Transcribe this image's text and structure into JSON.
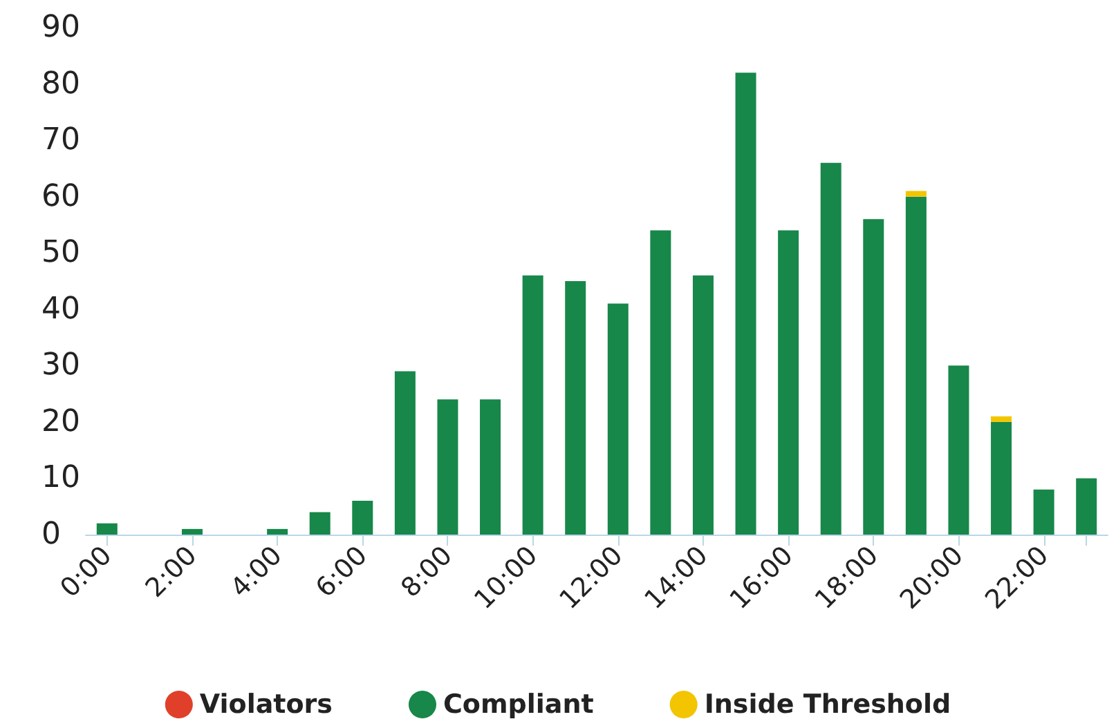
{
  "chart_data": {
    "type": "bar",
    "stacked": true,
    "categories": [
      "0:00",
      null,
      "2:00",
      null,
      "4:00",
      null,
      "6:00",
      null,
      "8:00",
      null,
      "10:00",
      null,
      "12:00",
      null,
      "14:00",
      null,
      "16:00",
      null,
      "18:00",
      null,
      "20:00",
      null,
      "22:00",
      null
    ],
    "series": [
      {
        "name": "Violators",
        "color": "#e0402a",
        "values": [
          0,
          0,
          0,
          0,
          0,
          0,
          0,
          0,
          0,
          0,
          0,
          0,
          0,
          0,
          0,
          0,
          0,
          0,
          0,
          0,
          0,
          0,
          0,
          0
        ]
      },
      {
        "name": "Compliant",
        "color": "#17874a",
        "values": [
          2,
          null,
          1,
          null,
          1,
          4,
          6,
          29,
          24,
          24,
          46,
          45,
          41,
          54,
          46,
          82,
          54,
          66,
          56,
          60,
          30,
          20,
          8,
          10
        ]
      },
      {
        "name": "Inside Threshold",
        "color": "#f2c500",
        "values": [
          null,
          null,
          null,
          null,
          null,
          null,
          null,
          null,
          null,
          null,
          null,
          null,
          null,
          null,
          null,
          null,
          null,
          null,
          null,
          1,
          null,
          1,
          null,
          null
        ]
      }
    ],
    "ylim": [
      0,
      90
    ],
    "yticks": [
      0,
      10,
      20,
      30,
      40,
      50,
      60,
      70,
      80,
      90
    ],
    "grid": false,
    "legend": "bottom"
  }
}
